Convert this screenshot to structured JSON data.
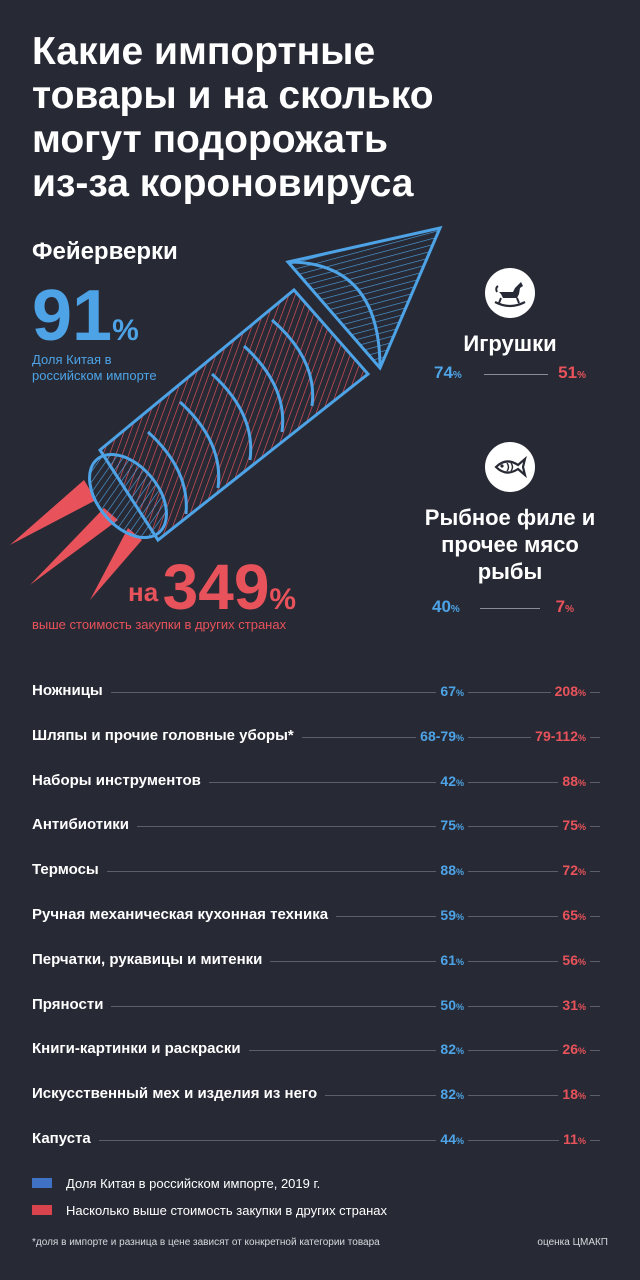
{
  "title_lines": [
    "Какие импортные",
    "товары и на сколько",
    "могут подорожать",
    "из-за короновируса"
  ],
  "hero": {
    "name": "Фейерверки",
    "china_share": "91",
    "china_share_caption": "Доля Китая в российском импорте",
    "price_prefix": "на",
    "price_increase": "349",
    "price_caption": "выше стоимость закупки в других странах"
  },
  "highlights": [
    {
      "name": "Игрушки",
      "icon": "rocking-horse-icon",
      "china_share": "74",
      "price_increase": "51"
    },
    {
      "name": "Рыбное филе и прочее мясо рыбы",
      "icon": "fish-icon",
      "china_share": "40",
      "price_increase": "7"
    }
  ],
  "percent_sign": "%",
  "chart_data": {
    "type": "table",
    "columns": [
      "Доля Китая в российском импорте, 2019 г.",
      "Насколько выше стоимость закупки в других странах"
    ],
    "rows": [
      {
        "name": "Ножницы",
        "china_share": "67",
        "price_increase": "208"
      },
      {
        "name": "Шляпы и прочие головные уборы*",
        "china_share": "68-79",
        "price_increase": "79-112"
      },
      {
        "name": "Наборы инструментов",
        "china_share": "42",
        "price_increase": "88"
      },
      {
        "name": "Антибиотики",
        "china_share": "75",
        "price_increase": "75"
      },
      {
        "name": "Термосы",
        "china_share": "88",
        "price_increase": "72"
      },
      {
        "name": "Ручная механическая кухонная техника",
        "china_share": "59",
        "price_increase": "65"
      },
      {
        "name": "Перчатки, рукавицы и митенки",
        "china_share": "61",
        "price_increase": "56"
      },
      {
        "name": "Пряности",
        "china_share": "50",
        "price_increase": "31"
      },
      {
        "name": "Книги-картинки и раскраски",
        "china_share": "82",
        "price_increase": "26"
      },
      {
        "name": "Искусственный мех и изделия из него",
        "china_share": "82",
        "price_increase": "18"
      },
      {
        "name": "Капуста",
        "china_share": "44",
        "price_increase": "11"
      }
    ]
  },
  "legend": [
    {
      "label": "Доля Китая в российском импорте, 2019 г.",
      "color": "#3f72c4"
    },
    {
      "label": "Насколько выше стоимость закупки в других странах",
      "color": "#d9434d"
    }
  ],
  "colors": {
    "background": "#272a35",
    "china": "#4da3e6",
    "price": "#e8525a"
  },
  "footnote": "*доля в импорте и разница в цене зависят от конкретной категории товара",
  "source": "оценка ЦМАКП"
}
